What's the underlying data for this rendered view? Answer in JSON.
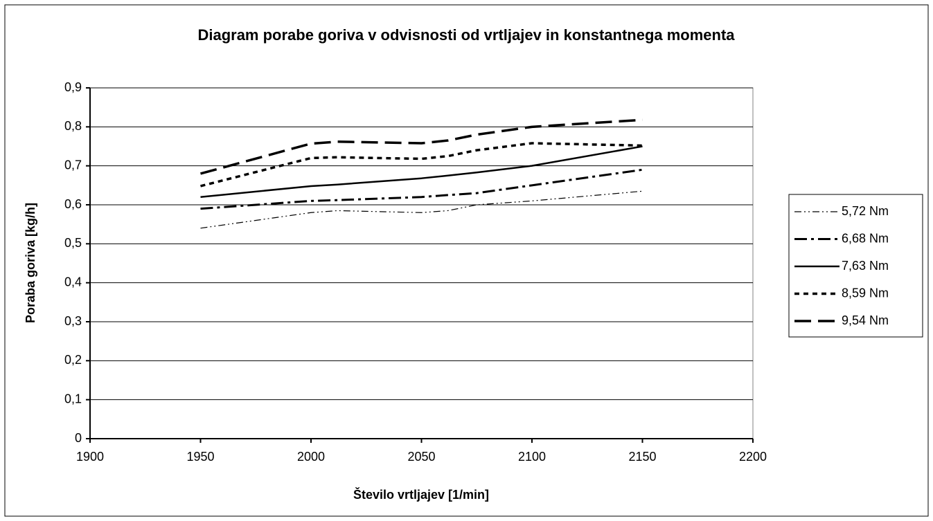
{
  "chart_data": {
    "type": "line",
    "title": "Diagram porabe goriva v odvisnosti od vrtljajev in konstantnega momenta",
    "x_label": "Število vrtljajev [1/min]",
    "y_label": "Poraba goriva [kg/h]",
    "x": [
      1950,
      2000,
      2012,
      2050,
      2062,
      2075,
      2100,
      2150
    ],
    "series": [
      {
        "name": "5,72 Nm",
        "color": "#000000",
        "line_style": "dash-dot-dot",
        "values": [
          0.54,
          0.58,
          0.585,
          0.58,
          0.585,
          0.6,
          0.61,
          0.635
        ]
      },
      {
        "name": "6,68 Nm",
        "color": "#000000",
        "line_style": "dash-dot",
        "values": [
          0.59,
          0.61,
          0.612,
          0.62,
          0.625,
          0.63,
          0.65,
          0.69
        ]
      },
      {
        "name": "7,63 Nm",
        "color": "#000000",
        "line_style": "solid",
        "values": [
          0.62,
          0.648,
          0.652,
          0.668,
          0.675,
          0.683,
          0.7,
          0.75
        ]
      },
      {
        "name": "8,59 Nm",
        "color": "#000000",
        "line_style": "dotted",
        "values": [
          0.648,
          0.72,
          0.722,
          0.718,
          0.725,
          0.74,
          0.758,
          0.752
        ]
      },
      {
        "name": "9,54 Nm",
        "color": "#000000",
        "line_style": "dashed",
        "values": [
          0.68,
          0.757,
          0.762,
          0.758,
          0.765,
          0.78,
          0.8,
          0.818
        ]
      }
    ],
    "xlim": [
      1900,
      2200
    ],
    "xticks": [
      1900,
      1950,
      2000,
      2050,
      2100,
      2150,
      2200
    ],
    "ylim": [
      0,
      0.9
    ],
    "yticks": [
      0,
      {
        "value": 0.1,
        "label": "0,1"
      },
      {
        "value": 0.2,
        "label": "0,2"
      },
      {
        "value": 0.3,
        "label": "0,3"
      },
      {
        "value": 0.4,
        "label": "0,4"
      },
      {
        "value": 0.5,
        "label": "0,5"
      },
      {
        "value": 0.6,
        "label": "0,6"
      },
      {
        "value": 0.7,
        "label": "0,7"
      },
      {
        "value": 0.8,
        "label": "0,8"
      },
      {
        "value": 0.9,
        "label": "0,9"
      }
    ],
    "grid": true,
    "legend": "right"
  }
}
